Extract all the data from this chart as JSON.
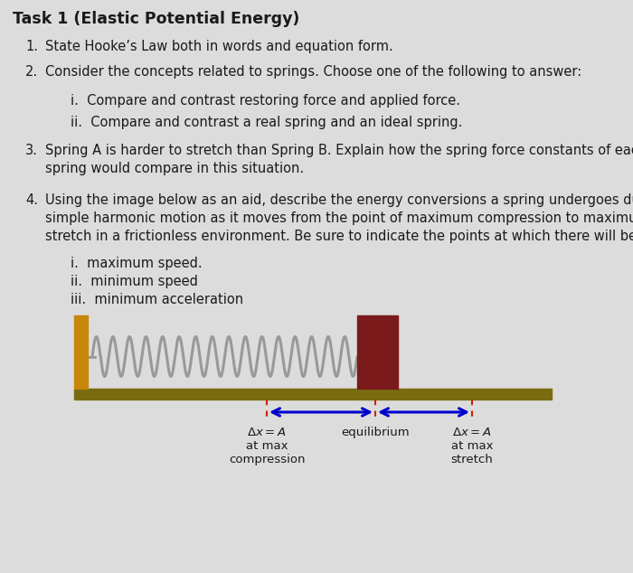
{
  "bg_color": "#dcdcdc",
  "title": "Task 1 (Elastic Potential Energy)",
  "item1_num": "1.",
  "item1_text": "State Hooke’s Law both in words and equation form.",
  "item2_num": "2.",
  "item2_text": "Consider the concepts related to springs. Choose one of the following to answer:",
  "sub2i": "i.  Compare and contrast restoring force and applied force.",
  "sub2ii": "ii.  Compare and contrast a real spring and an ideal spring.",
  "item3_num": "3.",
  "item3_line1": "Spring A is harder to stretch than Spring B. Explain how the spring force constants of each",
  "item3_line2": "spring would compare in this situation.",
  "item4_num": "4.",
  "item4_line1": "Using the image below as an aid, describe the energy conversions a spring undergoes during",
  "item4_line2": "simple harmonic motion as it moves from the point of maximum compression to maximum",
  "item4_line3": "stretch in a frictionless environment. Be sure to indicate the points at which there will be",
  "sub4i": "i.  maximum speed.",
  "sub4ii": "ii.  minimum speed",
  "sub4iii": "iii.  minimum acceleration",
  "wall_color": "#c8860a",
  "floor_color": "#7a6b10",
  "spring_color": "#999999",
  "block_color": "#7a1a1a",
  "arrow_color": "#0000cc",
  "dashed_color": "#cc0000",
  "text_color": "#1a1a1a",
  "fontsize_title": 12.5,
  "fontsize_body": 10.5,
  "fontsize_label": 9.5
}
